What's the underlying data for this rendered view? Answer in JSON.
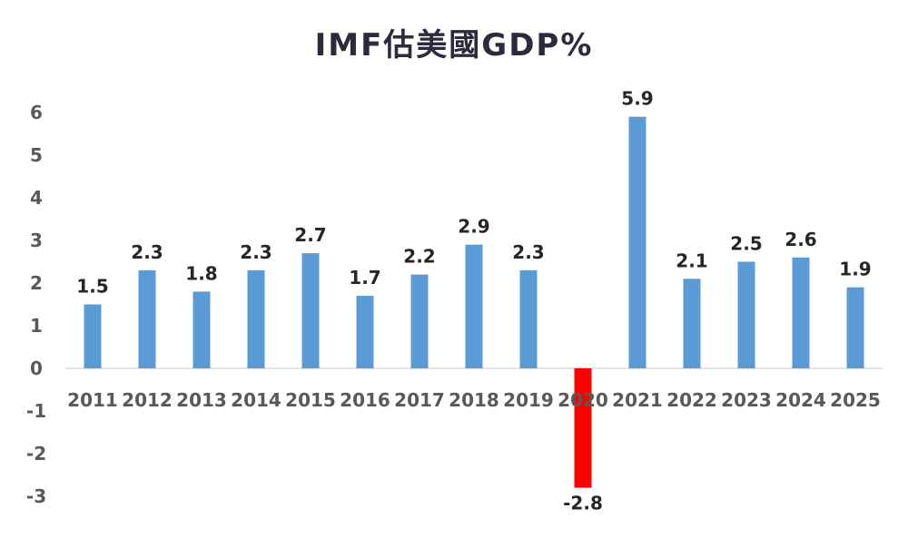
{
  "chart_data": {
    "type": "bar",
    "title": "IMF估美國GDP%",
    "xlabel": "",
    "ylabel": "",
    "ylim": [
      -3,
      6
    ],
    "yticks": [
      6,
      5,
      4,
      3,
      2,
      1,
      0,
      -1,
      -2,
      -3
    ],
    "categories": [
      "2011",
      "2012",
      "2013",
      "2014",
      "2015",
      "2016",
      "2017",
      "2018",
      "2019",
      "2020",
      "2021",
      "2022",
      "2023",
      "2024",
      "2025"
    ],
    "values": [
      1.5,
      2.3,
      1.8,
      2.3,
      2.7,
      1.7,
      2.2,
      2.9,
      2.3,
      -2.8,
      5.9,
      2.1,
      2.5,
      2.6,
      1.9
    ],
    "data_labels": [
      "1.5",
      "2.3",
      "1.8",
      "2.3",
      "2.7",
      "1.7",
      "2.2",
      "2.9",
      "2.3",
      "-2.8",
      "5.9",
      "2.1",
      "2.5",
      "2.6",
      "1.9"
    ],
    "grid": false,
    "colors": {
      "positive": "#5b9bd5",
      "negative": "#ff0000",
      "axis": "#d9d9d9"
    }
  }
}
